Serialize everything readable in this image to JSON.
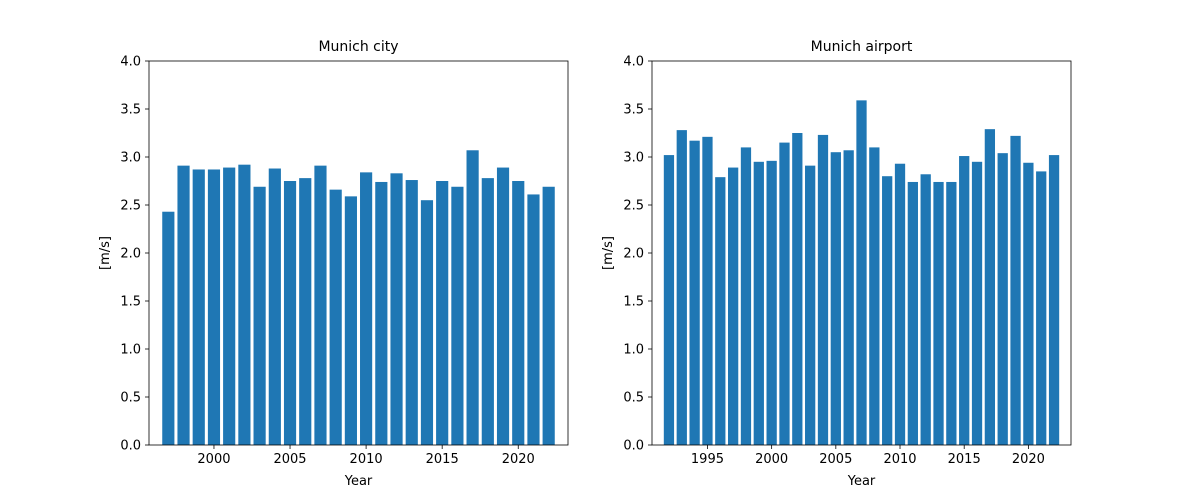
{
  "chart_data": [
    {
      "type": "bar",
      "title": "Munich city",
      "xlabel": "Year",
      "ylabel": "[m/s]",
      "ylim": [
        0,
        4.0
      ],
      "xlim": [
        1995.73,
        2023.27
      ],
      "xticks": [
        2000,
        2005,
        2010,
        2015,
        2020
      ],
      "yticks": [
        0.0,
        0.5,
        1.0,
        1.5,
        2.0,
        2.5,
        3.0,
        3.5,
        4.0
      ],
      "ytick_labels": [
        "0.0",
        "0.5",
        "1.0",
        "1.5",
        "2.0",
        "2.5",
        "3.0",
        "3.5",
        "4.0"
      ],
      "bar_color": "#1f77b4",
      "grid": false,
      "x": [
        1997,
        1998,
        1999,
        2000,
        2001,
        2002,
        2003,
        2004,
        2005,
        2006,
        2007,
        2008,
        2009,
        2010,
        2011,
        2012,
        2013,
        2014,
        2015,
        2016,
        2017,
        2018,
        2019,
        2020,
        2021,
        2022
      ],
      "values": [
        2.43,
        2.91,
        2.87,
        2.87,
        2.89,
        2.92,
        2.69,
        2.88,
        2.75,
        2.78,
        2.91,
        2.66,
        2.59,
        2.84,
        2.74,
        2.83,
        2.76,
        2.55,
        2.75,
        2.69,
        3.07,
        2.78,
        2.89,
        2.75,
        2.61,
        2.69
      ]
    },
    {
      "type": "bar",
      "title": "Munich airport",
      "xlabel": "Year",
      "ylabel": "[m/s]",
      "ylim": [
        0,
        4.0
      ],
      "xlim": [
        1990.68,
        2023.32
      ],
      "xticks": [
        1995,
        2000,
        2005,
        2010,
        2015,
        2020
      ],
      "yticks": [
        0.0,
        0.5,
        1.0,
        1.5,
        2.0,
        2.5,
        3.0,
        3.5,
        4.0
      ],
      "ytick_labels": [
        "0.0",
        "0.5",
        "1.0",
        "1.5",
        "2.0",
        "2.5",
        "3.0",
        "3.5",
        "4.0"
      ],
      "bar_color": "#1f77b4",
      "grid": false,
      "x": [
        1992,
        1993,
        1994,
        1995,
        1996,
        1997,
        1998,
        1999,
        2000,
        2001,
        2002,
        2003,
        2004,
        2005,
        2006,
        2007,
        2008,
        2009,
        2010,
        2011,
        2012,
        2013,
        2014,
        2015,
        2016,
        2017,
        2018,
        2019,
        2020,
        2021,
        2022
      ],
      "values": [
        3.02,
        3.28,
        3.17,
        3.21,
        2.79,
        2.89,
        3.1,
        2.95,
        2.96,
        3.15,
        3.25,
        2.91,
        3.23,
        3.05,
        3.07,
        3.59,
        3.1,
        2.8,
        2.93,
        2.74,
        2.82,
        2.74,
        2.74,
        3.01,
        2.95,
        3.29,
        3.04,
        3.22,
        2.94,
        2.85,
        3.02
      ]
    }
  ]
}
